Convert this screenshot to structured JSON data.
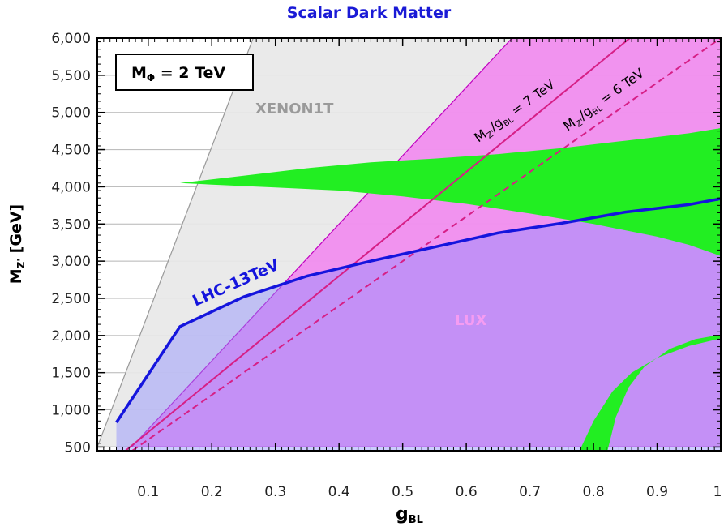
{
  "chart_data": {
    "type": "area",
    "title": "Scalar Dark Matter",
    "xlabel": "g",
    "xlabel_sub": "BL",
    "ylabel": "M",
    "ylabel_sub": "Z'",
    "ylabel_unit": " [GeV]",
    "xlim": [
      0.02,
      1.0
    ],
    "ylim": [
      450,
      6000
    ],
    "x_ticks": [
      0.1,
      0.2,
      0.3,
      0.4,
      0.5,
      0.6,
      0.7,
      0.8,
      0.9,
      1.0
    ],
    "x_tick_labels": [
      "0.1",
      "0.2",
      "0.3",
      "0.4",
      "0.5",
      "0.6",
      "0.7",
      "0.8",
      "0.9",
      "1"
    ],
    "y_ticks": [
      500,
      1000,
      1500,
      2000,
      2500,
      3000,
      3500,
      4000,
      4500,
      5000,
      5500,
      6000
    ],
    "y_tick_labels": [
      "500",
      "1,000",
      "1,500",
      "2,000",
      "2,500",
      "3,000",
      "3,500",
      "4,000",
      "4,500",
      "5,000",
      "5,500",
      "6,000"
    ],
    "grid": true,
    "box_label": {
      "prefix": "M",
      "sub": "Φ",
      "suffix": " = 2 TeV"
    },
    "regions": [
      {
        "name": "XENON1T",
        "color": "#e8e8e8",
        "edge": "#999999",
        "polygon": [
          [
            0.02,
            500
          ],
          [
            0.265,
            6000
          ],
          [
            1.0,
            6000
          ],
          [
            1.0,
            500
          ]
        ]
      },
      {
        "name": "LUX",
        "color": "#f18bef",
        "edge": "#c000c0",
        "polygon": [
          [
            0.074,
            500
          ],
          [
            0.672,
            6000
          ],
          [
            1.0,
            6000
          ],
          [
            1.0,
            500
          ]
        ]
      },
      {
        "name": "LHC-13TeV",
        "color": "#b39bf6",
        "line_color": "#1515dd",
        "boundary": [
          [
            0.05,
            830
          ],
          [
            0.15,
            2120
          ],
          [
            0.25,
            2520
          ],
          [
            0.35,
            2800
          ],
          [
            0.45,
            3000
          ],
          [
            0.55,
            3190
          ],
          [
            0.65,
            3380
          ],
          [
            0.75,
            3510
          ],
          [
            0.85,
            3660
          ],
          [
            0.95,
            3760
          ],
          [
            1.0,
            3840
          ]
        ]
      }
    ],
    "relic_bands": [
      {
        "color": "#22ee22",
        "upper": [
          [
            0.15,
            4050
          ],
          [
            0.25,
            4150
          ],
          [
            0.35,
            4250
          ],
          [
            0.45,
            4330
          ],
          [
            0.55,
            4380
          ],
          [
            0.65,
            4440
          ],
          [
            0.75,
            4520
          ],
          [
            0.85,
            4620
          ],
          [
            0.95,
            4720
          ],
          [
            1.0,
            4790
          ]
        ],
        "lower": [
          [
            0.15,
            4050
          ],
          [
            0.2,
            4030
          ],
          [
            0.3,
            3990
          ],
          [
            0.4,
            3950
          ],
          [
            0.5,
            3870
          ],
          [
            0.6,
            3770
          ],
          [
            0.7,
            3640
          ],
          [
            0.8,
            3500
          ],
          [
            0.9,
            3330
          ],
          [
            0.95,
            3220
          ],
          [
            1.0,
            3070
          ]
        ]
      },
      {
        "color": "#22ee22",
        "upper": [
          [
            0.822,
            450
          ],
          [
            0.835,
            900
          ],
          [
            0.855,
            1300
          ],
          [
            0.88,
            1580
          ],
          [
            0.92,
            1820
          ],
          [
            0.96,
            1950
          ],
          [
            1.0,
            2010
          ]
        ],
        "lower": [
          [
            0.778,
            450
          ],
          [
            0.8,
            850
          ],
          [
            0.83,
            1250
          ],
          [
            0.86,
            1500
          ],
          [
            0.9,
            1700
          ],
          [
            0.95,
            1860
          ],
          [
            1.0,
            1960
          ]
        ]
      }
    ],
    "ratio_lines": [
      {
        "value_tev": 7,
        "style": "solid",
        "color": "#d61f86",
        "label_suffix": " = 7 TeV"
      },
      {
        "value_tev": 6,
        "style": "dashed",
        "color": "#d61f86",
        "label_suffix": " = 6 TeV"
      }
    ],
    "ratio_label_parts": {
      "m": "M",
      "msub": "Z'",
      "slash": "/g",
      "gsub": "BL"
    }
  }
}
